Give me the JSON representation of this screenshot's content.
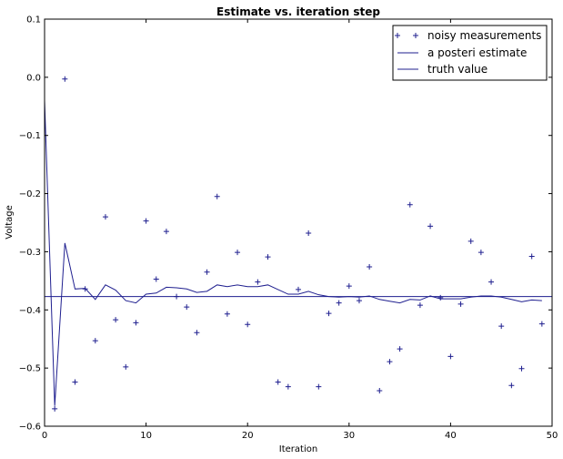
{
  "chart_data": {
    "type": "line",
    "title": "Estimate vs. iteration step",
    "xlabel": "Iteration",
    "ylabel": "Voltage",
    "xlim": [
      0,
      50
    ],
    "ylim": [
      -0.6,
      0.1
    ],
    "xticks": [
      "0",
      "10",
      "20",
      "30",
      "40",
      "50"
    ],
    "yticks": [
      "0.1",
      "0.0",
      "−0.1",
      "−0.2",
      "−0.3",
      "−0.4",
      "−0.5",
      "−0.6"
    ],
    "xtick_values": [
      0,
      10,
      20,
      30,
      40,
      50
    ],
    "ytick_values": [
      0.1,
      0.0,
      -0.1,
      -0.2,
      -0.3,
      -0.4,
      -0.5,
      -0.6
    ],
    "grid": false,
    "legend_position": "top-right",
    "colors": {
      "series": "#1f1f8f",
      "frame": "#000000"
    },
    "series": [
      {
        "name": "noisy measurements",
        "style": "markers",
        "marker": "+",
        "x": [
          1,
          2,
          3,
          4,
          5,
          6,
          7,
          8,
          9,
          10,
          11,
          12,
          13,
          14,
          15,
          16,
          17,
          18,
          19,
          20,
          21,
          22,
          23,
          24,
          25,
          26,
          27,
          28,
          29,
          30,
          31,
          32,
          33,
          34,
          35,
          36,
          37,
          38,
          39,
          40,
          41,
          42,
          43,
          44,
          45,
          46,
          47,
          48,
          49
        ],
        "y": [
          -0.57,
          -0.003,
          -0.524,
          -0.364,
          -0.453,
          -0.24,
          -0.417,
          -0.498,
          -0.422,
          -0.247,
          -0.347,
          -0.265,
          -0.377,
          -0.395,
          -0.439,
          -0.335,
          -0.205,
          -0.407,
          -0.301,
          -0.425,
          -0.352,
          -0.309,
          -0.524,
          -0.532,
          -0.365,
          -0.268,
          -0.532,
          -0.406,
          -0.388,
          -0.359,
          -0.384,
          -0.326,
          -0.539,
          -0.489,
          -0.467,
          -0.219,
          -0.392,
          -0.256,
          -0.379,
          -0.48,
          -0.39,
          -0.282,
          -0.301,
          -0.352,
          -0.428,
          -0.53,
          -0.501,
          -0.308,
          -0.424
        ]
      },
      {
        "name": "a posteri estimate",
        "style": "line",
        "x": [
          0,
          1,
          2,
          3,
          4,
          5,
          6,
          7,
          8,
          9,
          10,
          11,
          12,
          13,
          14,
          15,
          16,
          17,
          18,
          19,
          20,
          21,
          22,
          23,
          24,
          25,
          26,
          27,
          28,
          29,
          30,
          31,
          32,
          33,
          34,
          35,
          36,
          37,
          38,
          39,
          40,
          41,
          42,
          43,
          44,
          45,
          46,
          47,
          48,
          49
        ],
        "y": [
          -0.04,
          -0.565,
          -0.285,
          -0.364,
          -0.363,
          -0.382,
          -0.357,
          -0.366,
          -0.384,
          -0.388,
          -0.373,
          -0.371,
          -0.361,
          -0.362,
          -0.364,
          -0.37,
          -0.368,
          -0.357,
          -0.36,
          -0.357,
          -0.36,
          -0.36,
          -0.357,
          -0.365,
          -0.373,
          -0.373,
          -0.368,
          -0.374,
          -0.377,
          -0.378,
          -0.377,
          -0.378,
          -0.376,
          -0.382,
          -0.385,
          -0.388,
          -0.382,
          -0.383,
          -0.376,
          -0.381,
          -0.381,
          -0.381,
          -0.378,
          -0.376,
          -0.376,
          -0.378,
          -0.382,
          -0.386,
          -0.383,
          -0.384
        ]
      },
      {
        "name": "truth value",
        "style": "line",
        "x": [
          0,
          50
        ],
        "y": [
          -0.377,
          -0.377
        ]
      }
    ]
  }
}
